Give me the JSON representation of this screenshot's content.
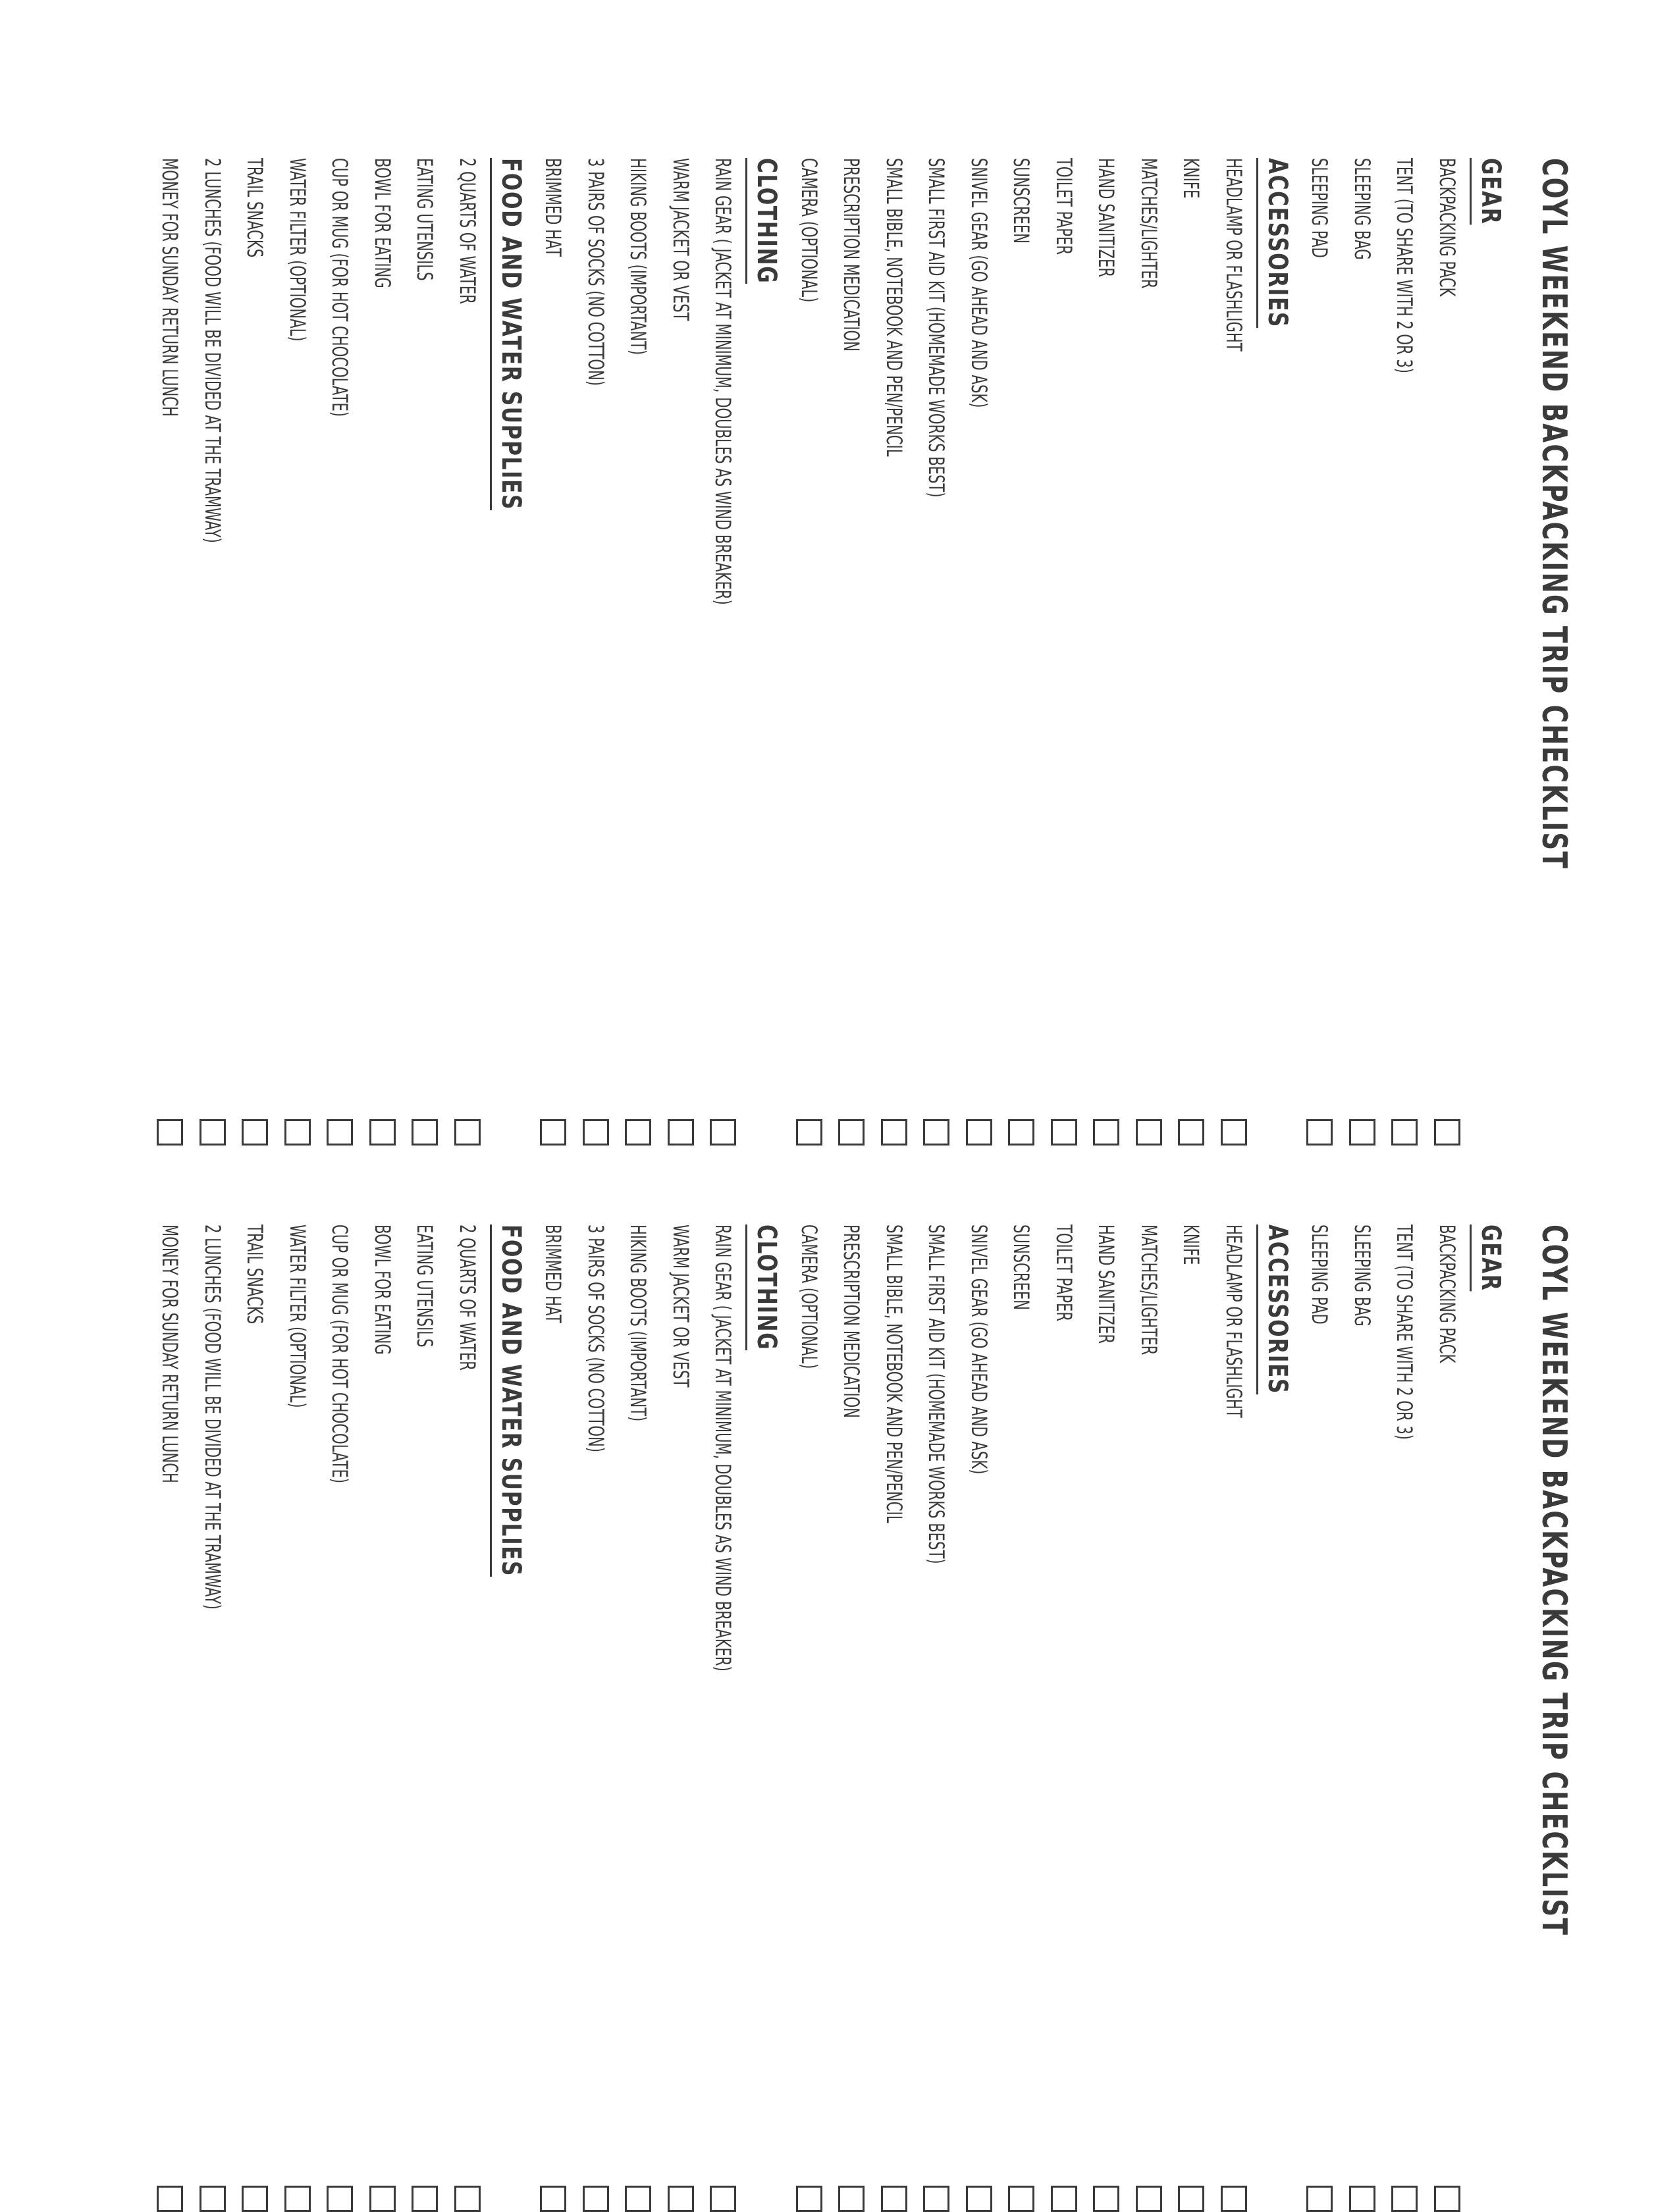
{
  "title": "COYL WEEKEND BACKPACKING TRIP CHECKLIST",
  "sections": [
    {
      "heading": "GEAR",
      "items": [
        "BACKPACKING PACK",
        "TENT (TO SHARE WITH 2 OR 3)",
        "SLEEPING BAG",
        "SLEEPING PAD"
      ]
    },
    {
      "heading": "ACCESSORIES",
      "items": [
        "HEADLAMP OR FLASHLIGHT",
        "KNIFE",
        "MATCHES/LIGHTER",
        "HAND SANITIZER",
        "TOILET PAPER",
        "SUNSCREEN",
        "SNIVEL GEAR (GO AHEAD AND ASK)",
        "SMALL FIRST AID KIT (HOMEMADE WORKS BEST)",
        "SMALL BIBLE, NOTEBOOK AND PEN/PENCIL",
        "PRESCRIPTION MEDICATION",
        "CAMERA (OPTIONAL)"
      ]
    },
    {
      "heading": "CLOTHING",
      "items": [
        "RAIN GEAR ( JACKET AT MINIMUM, DOUBLES AS WIND BREAKER)",
        "WARM JACKET OR VEST",
        "HIKING BOOTS (IMPORTANT)",
        "3 PAIRS OF SOCKS (NO COTTON)",
        "BRIMMED HAT"
      ]
    },
    {
      "heading": "FOOD AND WATER SUPPLIES",
      "items": [
        "2 QUARTS OF WATER",
        "EATING UTENSILS",
        "BOWL FOR EATING",
        "CUP OR MUG (FOR HOT CHOCOLATE)",
        "WATER FILTER (OPTIONAL)",
        "TRAIL SNACKS",
        "2 LUNCHES (FOOD WILL BE DIVIDED AT THE TRAMWAY)",
        "MONEY FOR SUNDAY RETURN LUNCH"
      ]
    }
  ]
}
